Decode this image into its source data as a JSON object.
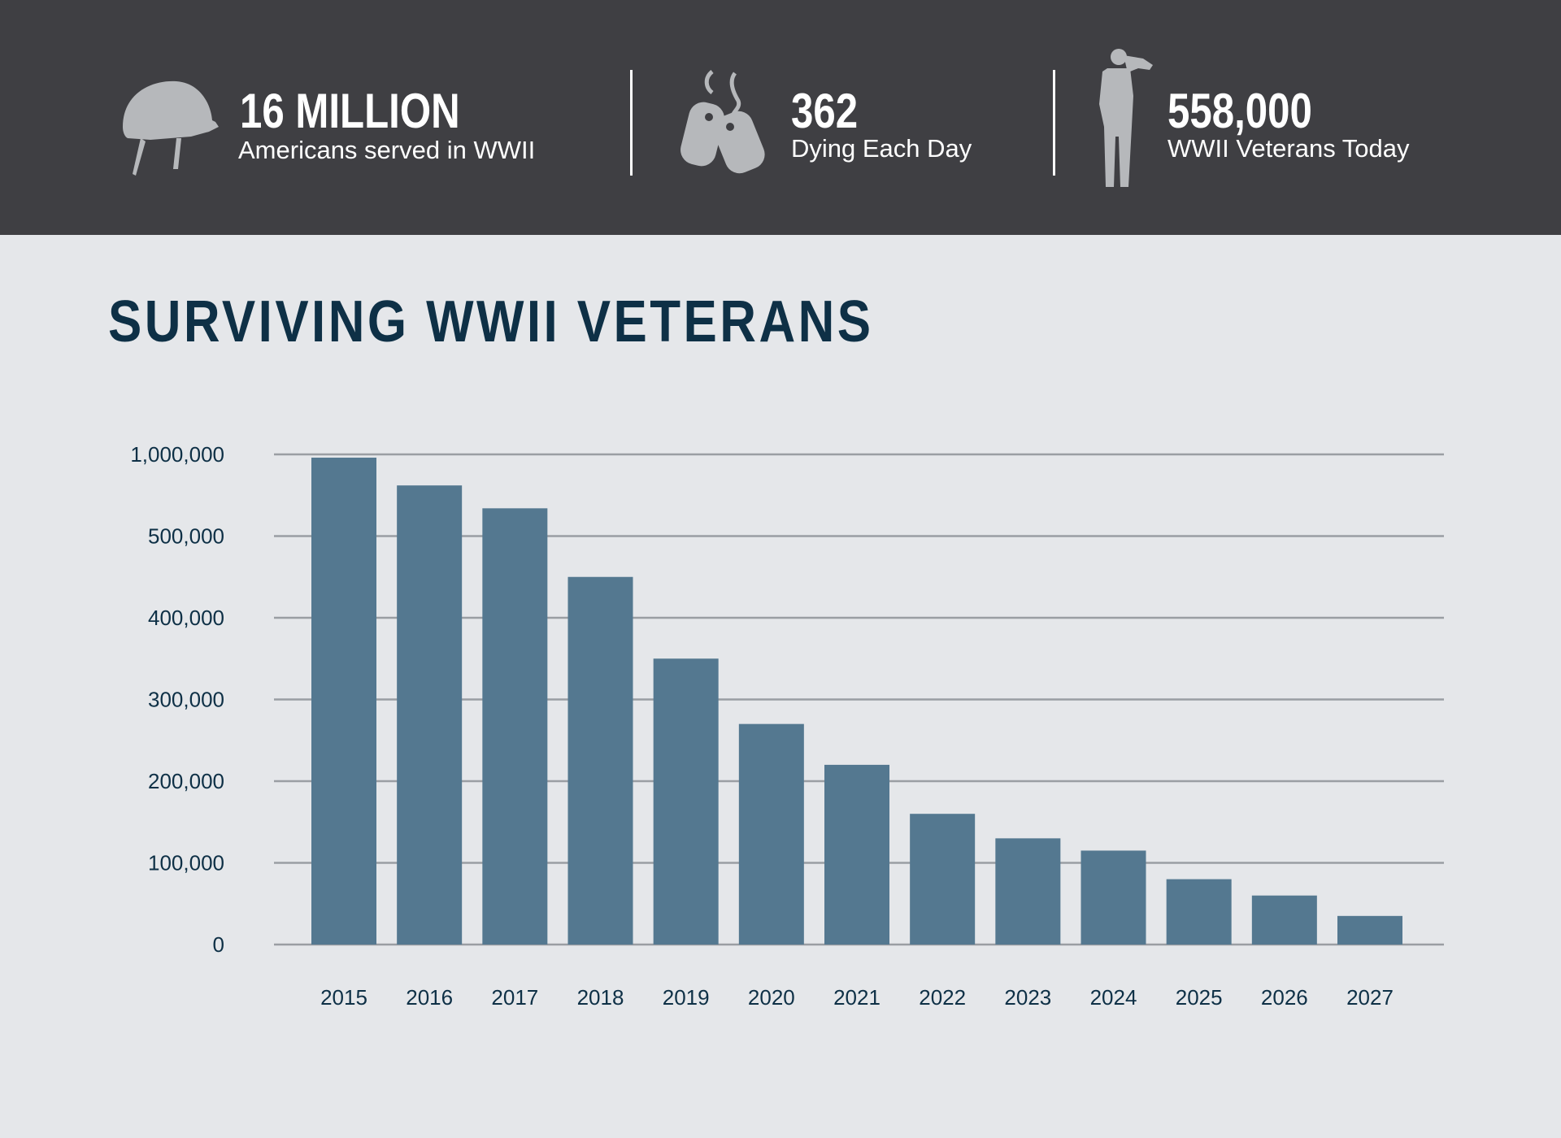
{
  "header": {
    "stats": [
      {
        "icon": "helmet-icon",
        "value": "16 MILLION",
        "label": "Americans served in WWII"
      },
      {
        "icon": "dog-tags-icon",
        "value": "362",
        "label": "Dying Each Day"
      },
      {
        "icon": "saluting-soldier-icon",
        "value": "558,000",
        "label": "WWII Veterans Today"
      }
    ],
    "background": "#3f3f43",
    "icon_color": "#b6b8bb"
  },
  "chart_data": {
    "type": "bar",
    "title": "SURVIVING WWII VETERANS",
    "xlabel": "",
    "ylabel": "",
    "categories": [
      "2015",
      "2016",
      "2017",
      "2018",
      "2019",
      "2020",
      "2021",
      "2022",
      "2023",
      "2024",
      "2025",
      "2026",
      "2027"
    ],
    "values": [
      980000,
      810000,
      670000,
      450000,
      350000,
      270000,
      220000,
      160000,
      130000,
      115000,
      80000,
      60000,
      35000
    ],
    "y_tick_labels": [
      "0",
      "100,000",
      "200,000",
      "300,000",
      "400,000",
      "500,000",
      "1,000,000"
    ],
    "y_tick_values": [
      0,
      100000,
      200000,
      300000,
      400000,
      500000,
      1000000
    ],
    "ylim": [
      0,
      1000000
    ],
    "y_scale": "broken axis: linear 0–500,000, then 500,000–1,000,000 compressed into one band",
    "grid": true,
    "bar_color": "#547890",
    "grid_color": "#9a9ea3",
    "text_color": "#0e3046"
  }
}
